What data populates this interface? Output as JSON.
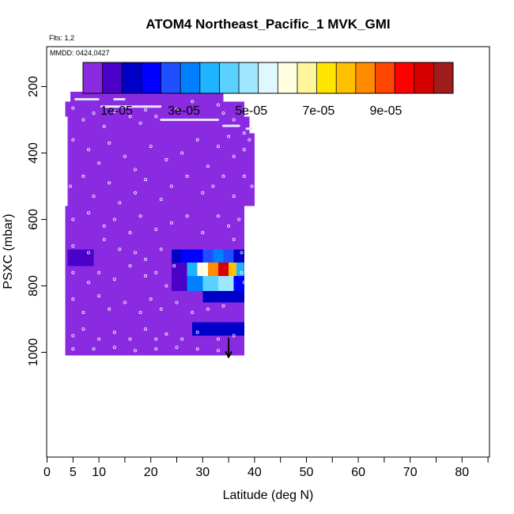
{
  "chart_data": {
    "type": "heatmap",
    "title": "ATOM4 Northeast_Pacific_1 MVK_GMI",
    "subtitle_flights": "Flts: 1,2",
    "subtitle_dates": "MMDD: 0424,0427",
    "xlabel": "Latitude (deg N)",
    "ylabel": "PSXC (mbar)",
    "xlim": [
      0,
      85
    ],
    "ylim": [
      1010,
      0
    ],
    "x_ticks": [
      0,
      5,
      10,
      20,
      30,
      40,
      50,
      60,
      70,
      80
    ],
    "y_ticks": [
      200,
      400,
      600,
      800,
      1000
    ],
    "colorbar": {
      "range": [
        0,
        0.00011
      ],
      "tick_labels": [
        "1e-05",
        "3e-05",
        "5e-05",
        "7e-05",
        "9e-05"
      ],
      "tick_values": [
        1e-05,
        3e-05,
        5e-05,
        7e-05,
        9e-05
      ],
      "colors": [
        "#8a2be2",
        "#4b00c8",
        "#0000c8",
        "#0000ff",
        "#1e50ff",
        "#0080ff",
        "#1eb4ff",
        "#5ad2ff",
        "#a0e6ff",
        "#dff7ff",
        "#ffffe0",
        "#fff59a",
        "#ffe600",
        "#ffc000",
        "#ff8c00",
        "#ff4600",
        "#ff0000",
        "#d70000",
        "#a01c1c"
      ]
    },
    "background_value": 0,
    "cells": [
      {
        "lat": [
          27,
          33
        ],
        "p": [
          180,
          210
        ],
        "value": 0
      },
      {
        "lat": [
          4.5,
          24
        ],
        "p": [
          215,
          245
        ],
        "value": 0
      },
      {
        "lat": [
          24,
          34
        ],
        "p": [
          210,
          290
        ],
        "value": 0
      },
      {
        "lat": [
          3.5,
          38
        ],
        "p": [
          245,
          290
        ],
        "value": 0
      },
      {
        "lat": [
          4,
          39
        ],
        "p": [
          290,
          340
        ],
        "value": 0
      },
      {
        "lat": [
          4,
          40
        ],
        "p": [
          340,
          560
        ],
        "value": 0
      },
      {
        "lat": [
          3.5,
          38
        ],
        "p": [
          560,
          640
        ],
        "value": 0
      },
      {
        "lat": [
          3.5,
          38
        ],
        "p": [
          640,
          1010
        ],
        "value": 0
      },
      {
        "lat": [
          3.5,
          4.5
        ],
        "p": [
          590,
          620
        ],
        "value": 3e-06
      },
      {
        "lat": [
          4,
          9
        ],
        "p": [
          690,
          740
        ],
        "value": 7e-06
      },
      {
        "lat": [
          9,
          11
        ],
        "p": [
          690,
          740
        ],
        "value": 3e-06
      },
      {
        "lat": [
          24,
          36
        ],
        "p": [
          640,
          680
        ],
        "value": 2e-06
      },
      {
        "lat": [
          24,
          26
        ],
        "p": [
          690,
          730
        ],
        "value": 1.2e-05
      },
      {
        "lat": [
          26,
          28
        ],
        "p": [
          690,
          730
        ],
        "value": 1.8e-05
      },
      {
        "lat": [
          28,
          30
        ],
        "p": [
          690,
          730
        ],
        "value": 2.2e-05
      },
      {
        "lat": [
          30,
          32
        ],
        "p": [
          690,
          730
        ],
        "value": 2.6e-05
      },
      {
        "lat": [
          32,
          34
        ],
        "p": [
          690,
          730
        ],
        "value": 3e-05
      },
      {
        "lat": [
          34,
          36
        ],
        "p": [
          690,
          730
        ],
        "value": 2.8e-05
      },
      {
        "lat": [
          36,
          38
        ],
        "p": [
          690,
          730
        ],
        "value": 1.2e-05
      },
      {
        "lat": [
          24,
          27
        ],
        "p": [
          730,
          770
        ],
        "value": 1.1e-05
      },
      {
        "lat": [
          27,
          29
        ],
        "p": [
          730,
          770
        ],
        "value": 4e-05
      },
      {
        "lat": [
          29,
          31
        ],
        "p": [
          730,
          770
        ],
        "value": 6.2e-05
      },
      {
        "lat": [
          31,
          33
        ],
        "p": [
          730,
          770
        ],
        "value": 8.5e-05
      },
      {
        "lat": [
          33,
          35
        ],
        "p": [
          730,
          770
        ],
        "value": 0.0001
      },
      {
        "lat": [
          35,
          36.5
        ],
        "p": [
          730,
          770
        ],
        "value": 7.8e-05
      },
      {
        "lat": [
          36.5,
          38
        ],
        "p": [
          730,
          770
        ],
        "value": 3.8e-05
      },
      {
        "lat": [
          24,
          27
        ],
        "p": [
          770,
          815
        ],
        "value": 8e-06
      },
      {
        "lat": [
          27,
          30
        ],
        "p": [
          770,
          815
        ],
        "value": 3.2e-05
      },
      {
        "lat": [
          30,
          33
        ],
        "p": [
          770,
          815
        ],
        "value": 4.6e-05
      },
      {
        "lat": [
          33,
          36
        ],
        "p": [
          770,
          815
        ],
        "value": 5e-05
      },
      {
        "lat": [
          36,
          38
        ],
        "p": [
          770,
          815
        ],
        "value": 2.2e-05
      },
      {
        "lat": [
          24,
          30
        ],
        "p": [
          815,
          850
        ],
        "value": 3e-06
      },
      {
        "lat": [
          30,
          38
        ],
        "p": [
          815,
          850
        ],
        "value": 1.3e-05
      },
      {
        "lat": [
          24,
          28
        ],
        "p": [
          850,
          890
        ],
        "value": 2e-06
      },
      {
        "lat": [
          28,
          38
        ],
        "p": [
          850,
          890
        ],
        "value": 5e-06
      },
      {
        "lat": [
          24,
          28
        ],
        "p": [
          910,
          950
        ],
        "value": 4e-06
      },
      {
        "lat": [
          28,
          38
        ],
        "p": [
          910,
          950
        ],
        "value": 1.4e-05
      },
      {
        "lat": [
          36,
          38
        ],
        "p": [
          960,
          1000
        ],
        "value": 5e-06
      }
    ],
    "flight_track_segments": [
      {
        "lat": [
          27.5,
          32.5
        ],
        "p": 197
      },
      {
        "lat": [
          5.5,
          10
        ],
        "p": 238
      },
      {
        "lat": [
          13,
          15
        ],
        "p": 238
      },
      {
        "lat": [
          10.5,
          22
        ],
        "p": 260
      },
      {
        "lat": [
          22,
          33
        ],
        "p": 300
      },
      {
        "lat": [
          34,
          37
        ],
        "p": 318
      },
      {
        "lat": [
          38.5,
          39.5
        ],
        "p": 327
      }
    ],
    "sample_points": [
      [
        5,
        265
      ],
      [
        7,
        300
      ],
      [
        9,
        280
      ],
      [
        11,
        320
      ],
      [
        13,
        275
      ],
      [
        16,
        290
      ],
      [
        18,
        310
      ],
      [
        19,
        270
      ],
      [
        21,
        290
      ],
      [
        25,
        268
      ],
      [
        28,
        245
      ],
      [
        33,
        255
      ],
      [
        34,
        280
      ],
      [
        36,
        300
      ],
      [
        38,
        340
      ],
      [
        5,
        360
      ],
      [
        8,
        390
      ],
      [
        10,
        430
      ],
      [
        12,
        370
      ],
      [
        15,
        410
      ],
      [
        17,
        450
      ],
      [
        20,
        380
      ],
      [
        23,
        420
      ],
      [
        26,
        400
      ],
      [
        29,
        360
      ],
      [
        31,
        440
      ],
      [
        33,
        380
      ],
      [
        35,
        350
      ],
      [
        36,
        410
      ],
      [
        38,
        390
      ],
      [
        39,
        360
      ],
      [
        4.5,
        500
      ],
      [
        7,
        470
      ],
      [
        9,
        530
      ],
      [
        12,
        490
      ],
      [
        14,
        550
      ],
      [
        17,
        520
      ],
      [
        19,
        480
      ],
      [
        22,
        540
      ],
      [
        24,
        500
      ],
      [
        27,
        470
      ],
      [
        30,
        520
      ],
      [
        32,
        500
      ],
      [
        34,
        470
      ],
      [
        36,
        530
      ],
      [
        38,
        470
      ],
      [
        39.5,
        500
      ],
      [
        5,
        600
      ],
      [
        8,
        580
      ],
      [
        11,
        620
      ],
      [
        13,
        600
      ],
      [
        16,
        640
      ],
      [
        18,
        590
      ],
      [
        21,
        630
      ],
      [
        24,
        610
      ],
      [
        27,
        590
      ],
      [
        30,
        640
      ],
      [
        33,
        590
      ],
      [
        35,
        620
      ],
      [
        37,
        600
      ],
      [
        39,
        590
      ],
      [
        5,
        680
      ],
      [
        8,
        700
      ],
      [
        11,
        660
      ],
      [
        14,
        690
      ],
      [
        17,
        700
      ],
      [
        19,
        720
      ],
      [
        22,
        690
      ],
      [
        36,
        660
      ],
      [
        37.5,
        700
      ],
      [
        5,
        760
      ],
      [
        8,
        790
      ],
      [
        10,
        760
      ],
      [
        13,
        780
      ],
      [
        16,
        740
      ],
      [
        19,
        770
      ],
      [
        21,
        760
      ],
      [
        23,
        800
      ],
      [
        24.5,
        740
      ],
      [
        37.5,
        760
      ],
      [
        38,
        790
      ],
      [
        5,
        840
      ],
      [
        7,
        880
      ],
      [
        10,
        830
      ],
      [
        12,
        870
      ],
      [
        15,
        850
      ],
      [
        18,
        880
      ],
      [
        20,
        840
      ],
      [
        22,
        870
      ],
      [
        25,
        850
      ],
      [
        28,
        880
      ],
      [
        31,
        870
      ],
      [
        34,
        860
      ],
      [
        5,
        950
      ],
      [
        7,
        930
      ],
      [
        10,
        960
      ],
      [
        13,
        940
      ],
      [
        16,
        960
      ],
      [
        19,
        930
      ],
      [
        21,
        960
      ],
      [
        23,
        945
      ],
      [
        26,
        960
      ],
      [
        29,
        940
      ],
      [
        33,
        960
      ],
      [
        36,
        950
      ],
      [
        5,
        990
      ],
      [
        9,
        990
      ],
      [
        13,
        985
      ],
      [
        17,
        995
      ],
      [
        21,
        990
      ],
      [
        25,
        985
      ],
      [
        29,
        990
      ],
      [
        33,
        995
      ]
    ],
    "marker": {
      "lat": 35,
      "p": 1000
    }
  }
}
